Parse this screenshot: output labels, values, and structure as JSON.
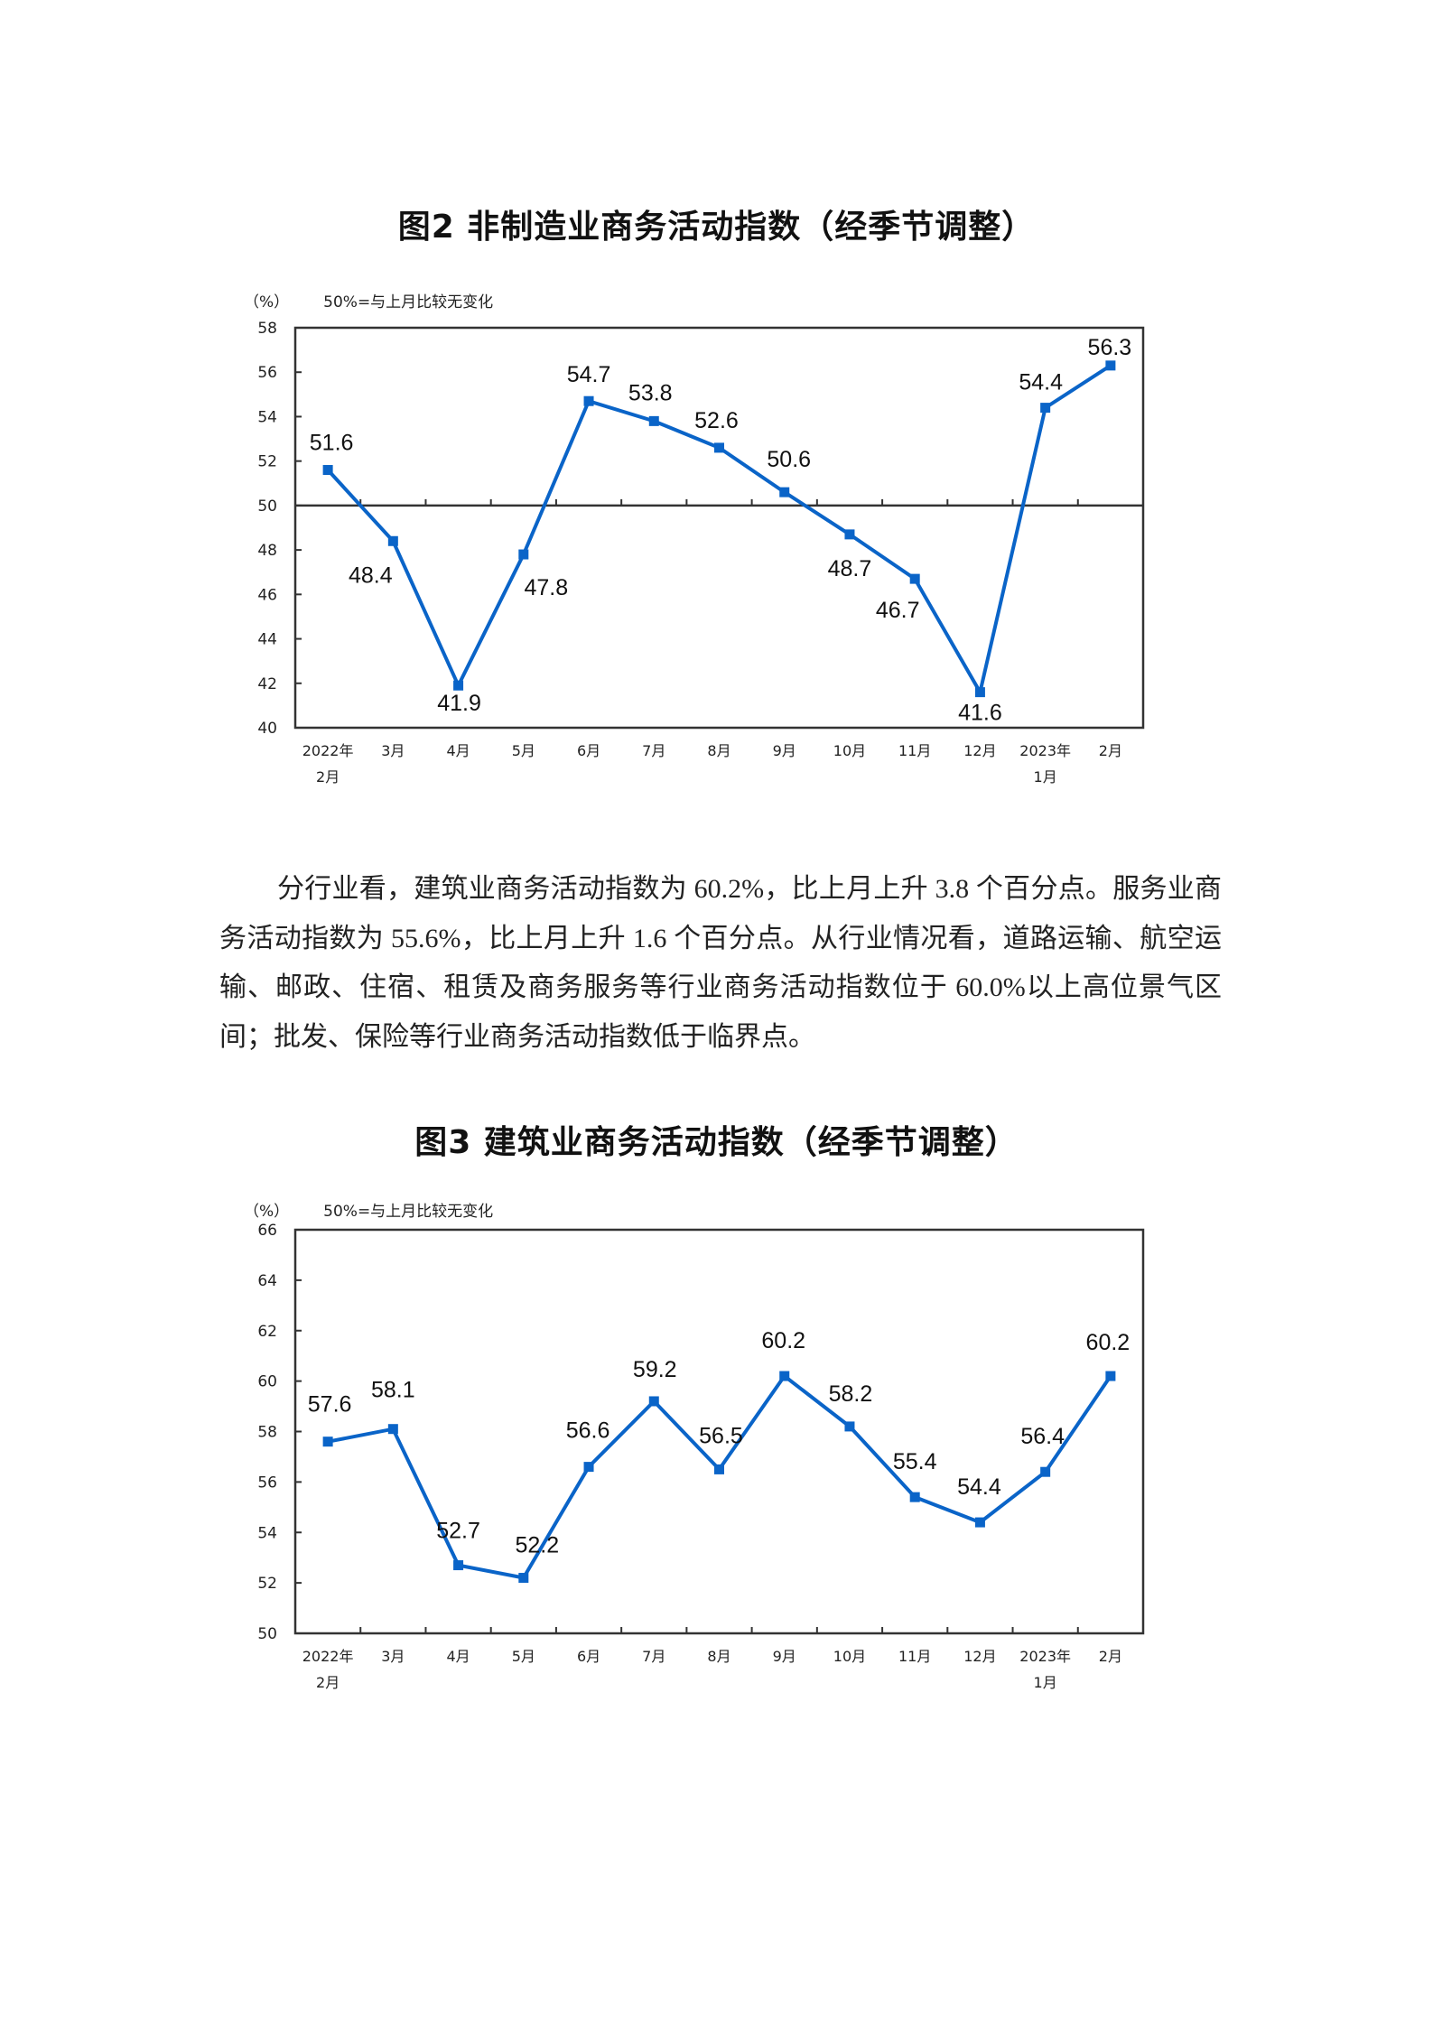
{
  "figure2": {
    "title": "图2  非制造业商务活动指数（经季节调整）",
    "unit_label": "（%）",
    "note": "50%=与上月比较无变化"
  },
  "paragraph": "分行业看，建筑业商务活动指数为 60.2%，比上月上升 3.8 个百分点。服务业商务活动指数为 55.6%，比上月上升 1.6 个百分点。从行业情况看，道路运输、航空运输、邮政、住宿、租赁及商务服务等行业商务活动指数位于 60.0%以上高位景气区间；批发、保险等行业商务活动指数低于临界点。",
  "figure3": {
    "title": "图3  建筑业商务活动指数（经季节调整）",
    "unit_label": "（%）",
    "note": "50%=与上月比较无变化"
  },
  "colors": {
    "line": "#0a64c8",
    "axis": "#333333",
    "text": "#111111"
  },
  "chart_data": [
    {
      "type": "line",
      "title": "图2 非制造业商务活动指数（经季节调整）",
      "xlabel": "",
      "ylabel": "（%）",
      "annotation": "50%=与上月比较无变化",
      "categories": [
        "2022年\n2月",
        "3月",
        "4月",
        "5月",
        "6月",
        "7月",
        "8月",
        "9月",
        "10月",
        "11月",
        "12月",
        "2023年\n1月",
        "2月"
      ],
      "series": [
        {
          "name": "非制造业商务活动指数",
          "values": [
            51.6,
            48.4,
            41.9,
            47.8,
            54.7,
            53.8,
            52.6,
            50.6,
            48.7,
            46.7,
            41.6,
            54.4,
            56.3
          ]
        }
      ],
      "ylim": [
        40,
        58
      ],
      "yticks": [
        40,
        42,
        44,
        46,
        48,
        50,
        52,
        54,
        56,
        58
      ],
      "reference_line": 50,
      "grid": false,
      "legend": "none"
    },
    {
      "type": "line",
      "title": "图3 建筑业商务活动指数（经季节调整）",
      "xlabel": "",
      "ylabel": "（%）",
      "annotation": "50%=与上月比较无变化",
      "categories": [
        "2022年\n2月",
        "3月",
        "4月",
        "5月",
        "6月",
        "7月",
        "8月",
        "9月",
        "10月",
        "11月",
        "12月",
        "2023年\n1月",
        "2月"
      ],
      "series": [
        {
          "name": "建筑业商务活动指数",
          "values": [
            57.6,
            58.1,
            52.7,
            52.2,
            56.6,
            59.2,
            56.5,
            60.2,
            58.2,
            55.4,
            54.4,
            56.4,
            60.2
          ]
        }
      ],
      "ylim": [
        50,
        66
      ],
      "yticks": [
        50,
        52,
        54,
        56,
        58,
        60,
        62,
        64,
        66
      ],
      "reference_line": 50,
      "grid": false,
      "legend": "none"
    }
  ]
}
